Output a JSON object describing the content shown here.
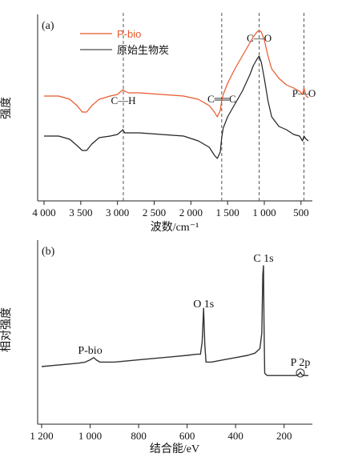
{
  "chart_data": [
    {
      "type": "line",
      "panel_label": "(a)",
      "xlabel": "波数/cm⁻¹",
      "ylabel": "强度",
      "x_reversed": true,
      "xlim": [
        4000,
        400
      ],
      "xticks": [
        4000,
        3500,
        3000,
        2500,
        2000,
        1500,
        1000,
        500
      ],
      "xtick_labels": [
        "4 000",
        "3 500",
        "3 000",
        "2 500",
        "2 000",
        "1 500",
        "1 000",
        "500"
      ],
      "y_units": "arbitrary (stacked, offset)",
      "grid": false,
      "legend_position": "top-left",
      "colors": {
        "P-bio": "#e8582a",
        "原始生物炭": "#222222"
      },
      "reference_lines_x": [
        2920,
        1580,
        1070,
        460
      ],
      "annotations": [
        {
          "text": "C—H",
          "x": 2920
        },
        {
          "text": "C══C",
          "x": 1580
        },
        {
          "text": "C—O",
          "x": 1070
        },
        {
          "text": "P—O",
          "x": 460
        }
      ],
      "series": [
        {
          "name": "P-bio",
          "x": [
            4000,
            3800,
            3650,
            3550,
            3480,
            3420,
            3350,
            3250,
            3100,
            3000,
            2950,
            2925,
            2900,
            2850,
            2700,
            2400,
            2100,
            1900,
            1750,
            1680,
            1640,
            1600,
            1580,
            1560,
            1500,
            1400,
            1300,
            1200,
            1150,
            1100,
            1070,
            1040,
            1000,
            950,
            900,
            800,
            700,
            600,
            520,
            480,
            460,
            430,
            400
          ],
          "values": [
            0.55,
            0.55,
            0.53,
            0.49,
            0.45,
            0.45,
            0.49,
            0.53,
            0.55,
            0.56,
            0.58,
            0.59,
            0.58,
            0.57,
            0.57,
            0.56,
            0.55,
            0.53,
            0.49,
            0.45,
            0.42,
            0.46,
            0.52,
            0.56,
            0.63,
            0.72,
            0.8,
            0.88,
            0.92,
            0.95,
            0.96,
            0.95,
            0.9,
            0.8,
            0.72,
            0.66,
            0.62,
            0.6,
            0.58,
            0.56,
            0.6,
            0.55,
            0.54
          ]
        },
        {
          "name": "原始生物炭",
          "x": [
            4000,
            3800,
            3650,
            3550,
            3480,
            3420,
            3350,
            3250,
            3100,
            3000,
            2950,
            2925,
            2900,
            2850,
            2700,
            2400,
            2100,
            1900,
            1750,
            1680,
            1640,
            1600,
            1580,
            1560,
            1500,
            1400,
            1300,
            1200,
            1150,
            1100,
            1070,
            1040,
            1000,
            950,
            900,
            800,
            700,
            600,
            520,
            480,
            460,
            430,
            400
          ],
          "values": [
            0.3,
            0.3,
            0.28,
            0.24,
            0.21,
            0.21,
            0.25,
            0.29,
            0.3,
            0.31,
            0.33,
            0.34,
            0.32,
            0.32,
            0.32,
            0.31,
            0.3,
            0.27,
            0.23,
            0.18,
            0.16,
            0.2,
            0.29,
            0.35,
            0.42,
            0.5,
            0.58,
            0.68,
            0.74,
            0.78,
            0.8,
            0.76,
            0.66,
            0.52,
            0.42,
            0.36,
            0.34,
            0.31,
            0.3,
            0.27,
            0.3,
            0.28,
            0.27
          ]
        }
      ]
    },
    {
      "type": "line",
      "panel_label": "(b)",
      "xlabel": "结合能/eV",
      "ylabel": "相对强度",
      "x_reversed": true,
      "xlim": [
        1200,
        100
      ],
      "xticks": [
        1200,
        1000,
        800,
        600,
        400,
        200
      ],
      "xtick_labels": [
        "1 200",
        "1 000",
        "800",
        "600",
        "400",
        "200"
      ],
      "grid": false,
      "color": "#333333",
      "annotations": [
        {
          "text": "P-bio",
          "x": 1000
        },
        {
          "text": "O 1s",
          "x": 532
        },
        {
          "text": "C 1s",
          "x": 285
        },
        {
          "text": "P 2p",
          "x": 133
        }
      ],
      "series": [
        {
          "name": "P-bio",
          "x": [
            1200,
            1150,
            1100,
            1050,
            1020,
            1000,
            985,
            975,
            960,
            900,
            800,
            700,
            650,
            600,
            560,
            545,
            538,
            532,
            527,
            522,
            500,
            450,
            400,
            350,
            320,
            300,
            292,
            288,
            285,
            283,
            280,
            270,
            250,
            200,
            150,
            140,
            133,
            128,
            120,
            100
          ],
          "values": [
            0.1,
            0.11,
            0.12,
            0.13,
            0.14,
            0.16,
            0.18,
            0.16,
            0.14,
            0.14,
            0.16,
            0.18,
            0.19,
            0.2,
            0.21,
            0.21,
            0.32,
            0.62,
            0.3,
            0.14,
            0.14,
            0.16,
            0.18,
            0.2,
            0.22,
            0.26,
            0.4,
            0.92,
            1.0,
            0.5,
            0.04,
            0.02,
            0.02,
            0.02,
            0.02,
            0.03,
            0.05,
            0.03,
            0.02,
            0.02
          ]
        }
      ]
    }
  ]
}
